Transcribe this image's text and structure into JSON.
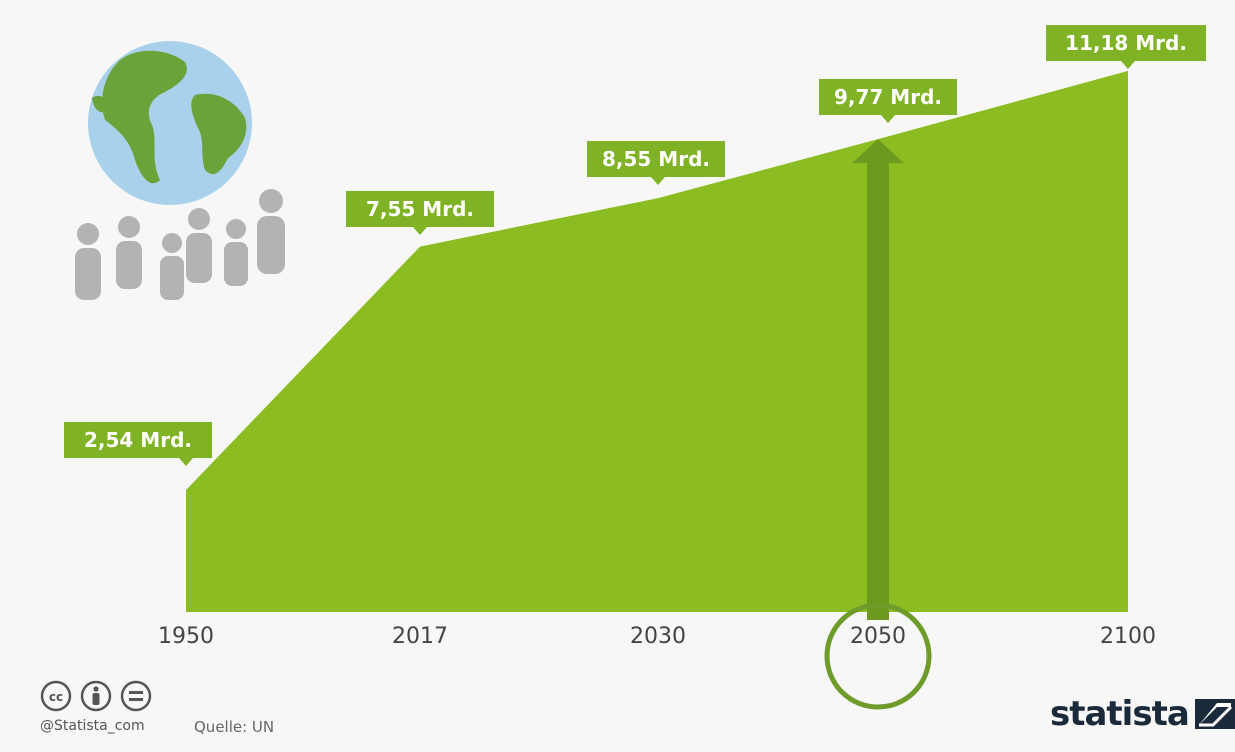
{
  "chart_data": {
    "type": "area",
    "title": "",
    "xlabel": "",
    "ylabel": "",
    "x": [
      "1950",
      "2017",
      "2030",
      "2050",
      "2100"
    ],
    "values": [
      2.54,
      7.55,
      8.55,
      9.77,
      11.18
    ],
    "data_labels": [
      "2,54 Mrd.",
      "7,55 Mrd.",
      "8,55 Mrd.",
      "9,77 Mrd.",
      "11,18 Mrd."
    ],
    "unit": "Mrd.",
    "highlight": {
      "x": "2050",
      "marker": "upward-arrow-with-circle"
    },
    "grid": false,
    "legend": "none"
  },
  "colors": {
    "area": "#8bbd22",
    "callout": "#7fb325",
    "arrow": "#6b9a1f",
    "circle": "#6e9b2a",
    "background": "#f7f7f7",
    "people": "#b3b3b3",
    "globe_ocean": "#a9d1ec",
    "globe_land": "#6aa33a"
  },
  "icons": {
    "globe": "globe-icon",
    "people": "people-group-icon",
    "license": [
      "creative-commons-icon",
      "attribution-icon",
      "no-derivatives-icon"
    ],
    "brand": "statista-logo"
  },
  "footer": {
    "handle": "@Statista_com",
    "source": "Quelle: UN",
    "brand": "statista"
  }
}
